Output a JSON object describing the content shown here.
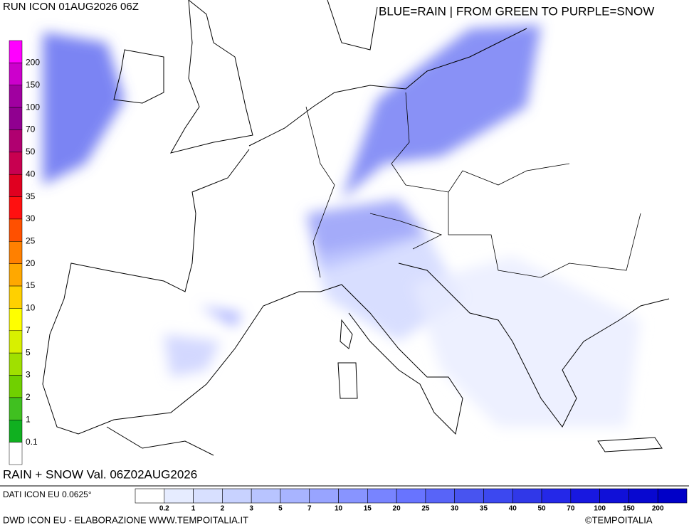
{
  "header": {
    "run": "RUN ICON 01AUG2026 06Z",
    "legend_note": "BLUE=RAIN | FROM GREEN TO PURPLE=SNOW"
  },
  "left_scale": {
    "labels": [
      200,
      150,
      100,
      70,
      50,
      40,
      35,
      30,
      25,
      20,
      15,
      10,
      7,
      5,
      3,
      2,
      1,
      0.1
    ],
    "colors": [
      "#ff00ff",
      "#cc00cc",
      "#a000a0",
      "#900090",
      "#b00070",
      "#c80050",
      "#e00020",
      "#ff1010",
      "#ff5000",
      "#ff8000",
      "#ffa800",
      "#ffd000",
      "#ffff00",
      "#d8f000",
      "#a0e000",
      "#70d000",
      "#40c020",
      "#10b020",
      "#ffffff"
    ]
  },
  "map_label": "RAIN + SNOW Val. 06Z02AUG2026",
  "bottom_scale": {
    "labels": [
      0.2,
      1,
      2,
      3,
      5,
      7,
      10,
      15,
      20,
      25,
      30,
      35,
      40,
      50,
      70,
      100,
      150,
      200
    ],
    "colors": [
      "#ffffff",
      "#e6ecff",
      "#d8e0ff",
      "#c8d2ff",
      "#b8c4ff",
      "#a8b4ff",
      "#98a4ff",
      "#8894ff",
      "#7884ff",
      "#6874ff",
      "#5864f8",
      "#4854f0",
      "#3c48f0",
      "#3038e8",
      "#2428e8",
      "#1818e0",
      "#1010d8",
      "#0808d0",
      "#0000c8"
    ]
  },
  "footer": {
    "data": "DATI ICON EU 0.0625°",
    "source": "DWD ICON EU - ELABORAZIONE WWW.TEMPOITALIA.IT",
    "copyright": "©TEMPOITALIA"
  }
}
